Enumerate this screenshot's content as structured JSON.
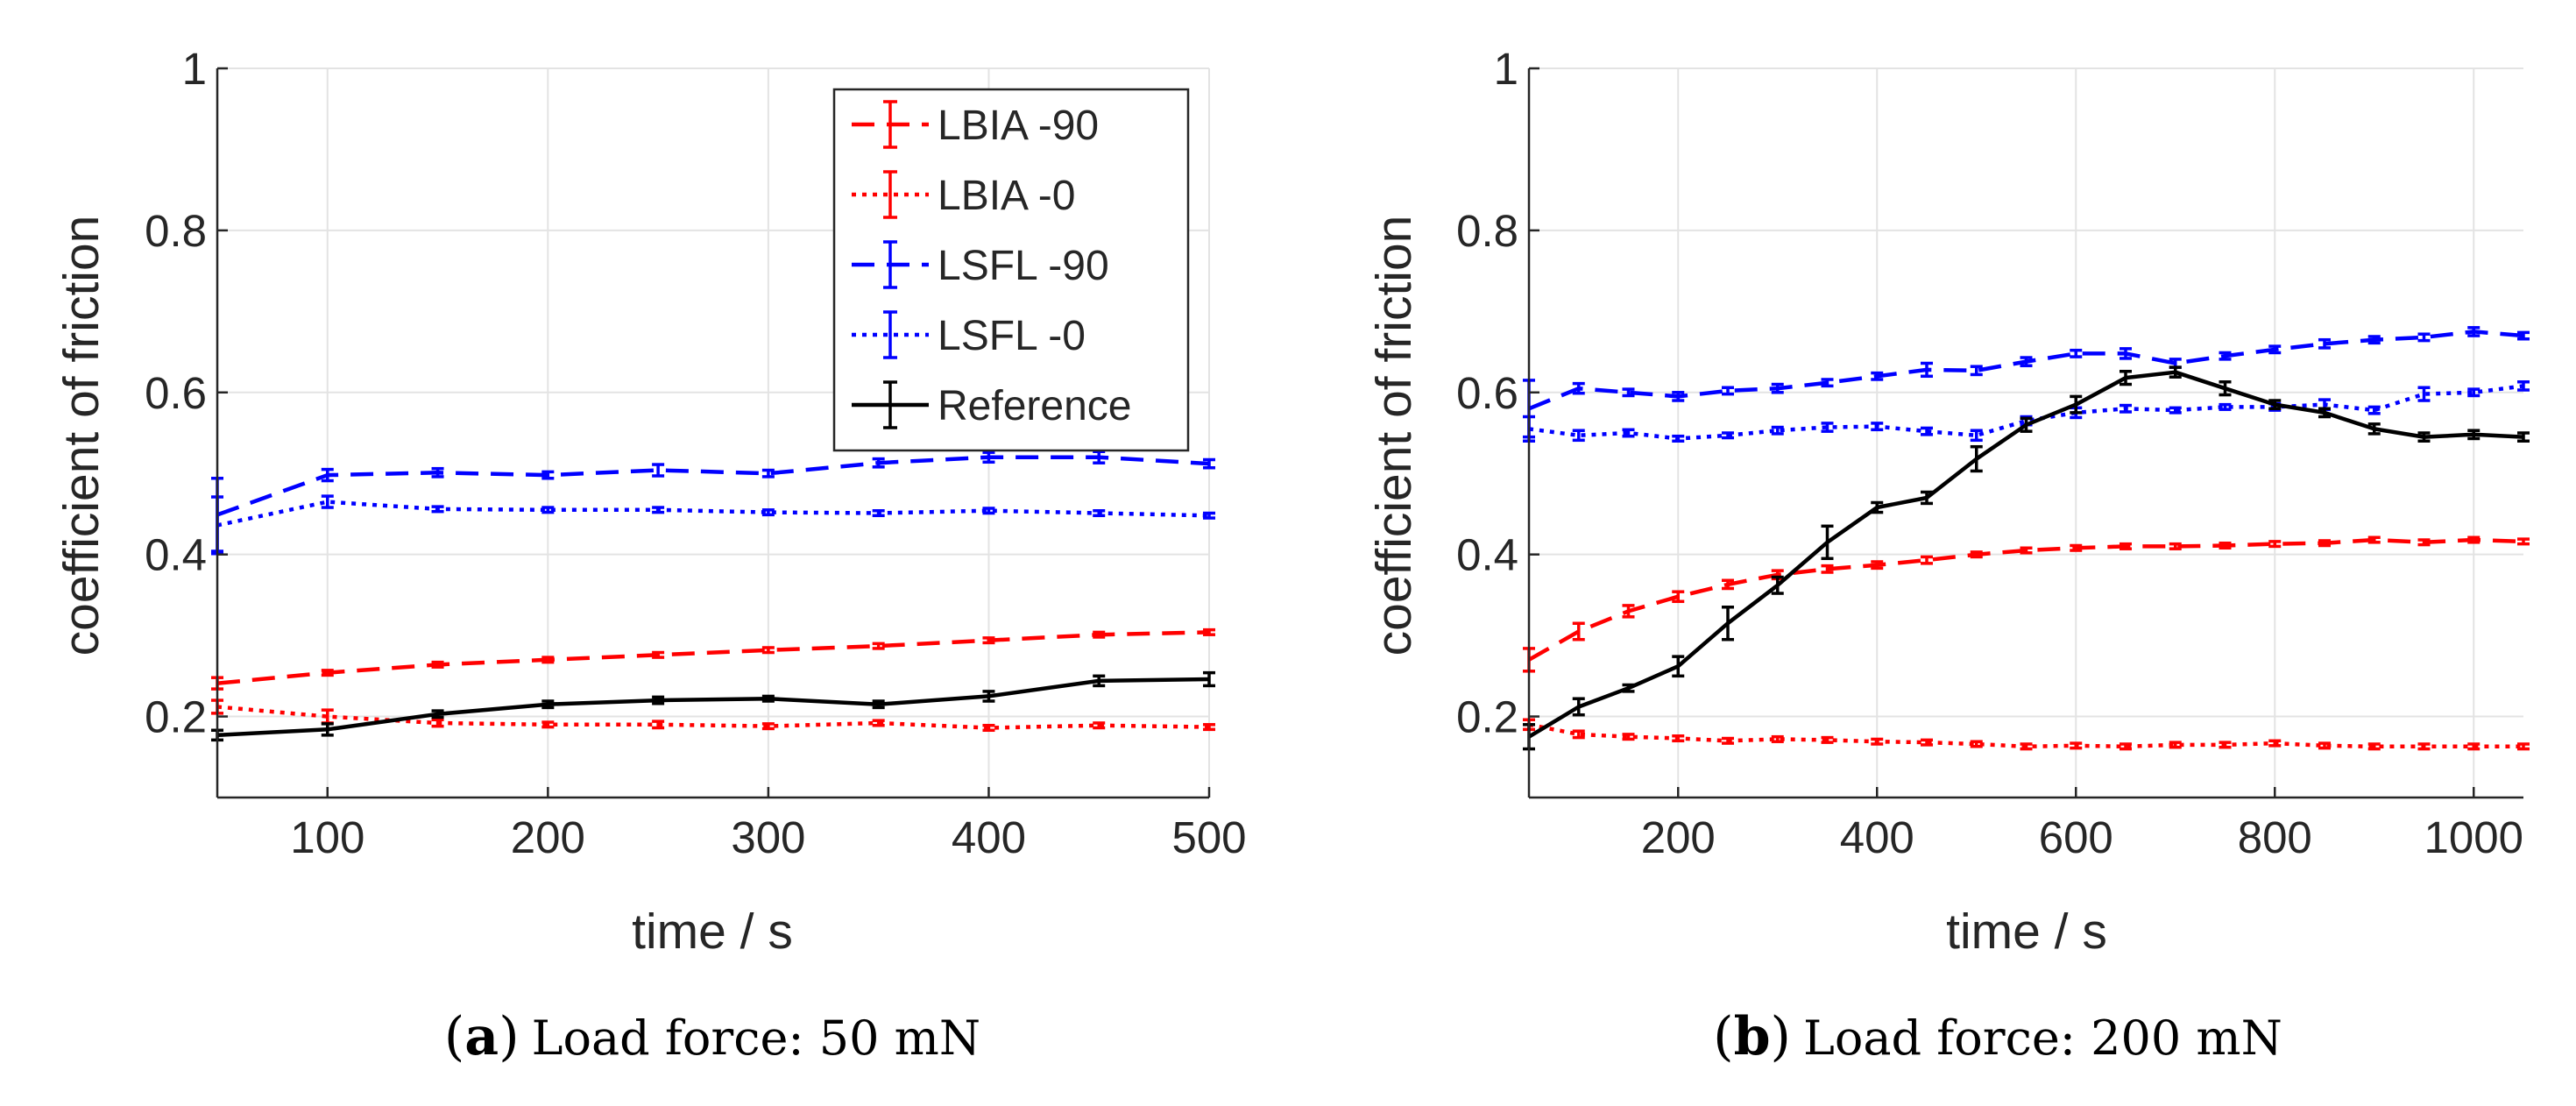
{
  "chart_data": [
    {
      "type": "line",
      "panel_label": "(a)",
      "caption_label": "a",
      "caption_text": "Load force: 50 mN",
      "xlabel": "time / s",
      "ylabel": "coefficient of friction",
      "xlim": [
        50,
        500
      ],
      "ylim": [
        0.1,
        1.0
      ],
      "xticks": [
        100,
        200,
        300,
        400,
        500
      ],
      "yticks": [
        0.2,
        0.4,
        0.6,
        0.8,
        1.0
      ],
      "ytick_labels": [
        "0.2",
        "0.4",
        "0.6",
        "0.8",
        "1"
      ],
      "grid": true,
      "legend_position": "top-right",
      "x": [
        50,
        100,
        150,
        200,
        250,
        300,
        350,
        400,
        450,
        500
      ],
      "series": [
        {
          "name": "LBIA -90",
          "color": "#ff0000",
          "style": "dashed",
          "values": [
            0.241,
            0.254,
            0.264,
            0.27,
            0.276,
            0.282,
            0.287,
            0.294,
            0.301,
            0.304
          ],
          "errors": [
            0.007,
            0.003,
            0.003,
            0.003,
            0.003,
            0.003,
            0.003,
            0.003,
            0.003,
            0.003
          ]
        },
        {
          "name": "LBIA -0",
          "color": "#ff0000",
          "style": "dotted",
          "values": [
            0.212,
            0.2,
            0.192,
            0.19,
            0.19,
            0.188,
            0.192,
            0.186,
            0.189,
            0.187
          ],
          "errors": [
            0.008,
            0.008,
            0.004,
            0.003,
            0.004,
            0.003,
            0.003,
            0.003,
            0.003,
            0.003
          ]
        },
        {
          "name": "LSFL -90",
          "color": "#0000ff",
          "style": "dashed",
          "values": [
            0.449,
            0.498,
            0.501,
            0.498,
            0.504,
            0.5,
            0.513,
            0.52,
            0.52,
            0.512
          ],
          "errors": [
            0.045,
            0.007,
            0.005,
            0.004,
            0.007,
            0.004,
            0.005,
            0.006,
            0.007,
            0.005
          ]
        },
        {
          "name": "LSFL -0",
          "color": "#0000ff",
          "style": "dotted",
          "values": [
            0.436,
            0.465,
            0.456,
            0.455,
            0.455,
            0.452,
            0.451,
            0.454,
            0.451,
            0.448
          ],
          "errors": [
            0.035,
            0.007,
            0.003,
            0.003,
            0.003,
            0.003,
            0.003,
            0.003,
            0.003,
            0.003
          ]
        },
        {
          "name": "Reference",
          "color": "#000000",
          "style": "solid",
          "values": [
            0.177,
            0.184,
            0.203,
            0.215,
            0.22,
            0.222,
            0.215,
            0.225,
            0.244,
            0.246
          ],
          "errors": [
            0.006,
            0.007,
            0.004,
            0.004,
            0.004,
            0.003,
            0.004,
            0.006,
            0.006,
            0.008
          ]
        }
      ]
    },
    {
      "type": "line",
      "panel_label": "(b)",
      "caption_label": "b",
      "caption_text": "Load force: 200 mN",
      "xlabel": "time / s",
      "ylabel": "coefficient of friction",
      "xlim": [
        50,
        1050
      ],
      "ylim": [
        0.1,
        1.0
      ],
      "xticks": [
        200,
        400,
        600,
        800,
        1000
      ],
      "yticks": [
        0.2,
        0.4,
        0.6,
        0.8,
        1.0
      ],
      "ytick_labels": [
        "0.2",
        "0.4",
        "0.6",
        "0.8",
        "1"
      ],
      "grid": true,
      "legend_position": "none",
      "x": [
        50,
        100,
        150,
        200,
        250,
        300,
        350,
        400,
        450,
        500,
        550,
        600,
        650,
        700,
        750,
        800,
        850,
        900,
        950,
        1000,
        1050
      ],
      "series": [
        {
          "name": "LBIA -90",
          "color": "#ff0000",
          "style": "dashed",
          "values": [
            0.27,
            0.305,
            0.33,
            0.348,
            0.363,
            0.375,
            0.382,
            0.387,
            0.393,
            0.4,
            0.405,
            0.408,
            0.41,
            0.41,
            0.411,
            0.413,
            0.414,
            0.418,
            0.415,
            0.418,
            0.416
          ],
          "errors": [
            0.014,
            0.01,
            0.007,
            0.006,
            0.005,
            0.005,
            0.004,
            0.004,
            0.004,
            0.003,
            0.003,
            0.003,
            0.003,
            0.003,
            0.003,
            0.003,
            0.003,
            0.003,
            0.003,
            0.003,
            0.003
          ]
        },
        {
          "name": "LBIA -0",
          "color": "#ff0000",
          "style": "dotted",
          "values": [
            0.19,
            0.178,
            0.175,
            0.173,
            0.17,
            0.172,
            0.171,
            0.169,
            0.168,
            0.166,
            0.163,
            0.164,
            0.163,
            0.165,
            0.165,
            0.167,
            0.164,
            0.163,
            0.163,
            0.163,
            0.163
          ],
          "errors": [
            0.006,
            0.004,
            0.003,
            0.003,
            0.003,
            0.003,
            0.003,
            0.003,
            0.003,
            0.003,
            0.003,
            0.003,
            0.003,
            0.003,
            0.003,
            0.003,
            0.003,
            0.003,
            0.003,
            0.003,
            0.003
          ]
        },
        {
          "name": "LSFL -90",
          "color": "#0000ff",
          "style": "dashed",
          "values": [
            0.58,
            0.605,
            0.6,
            0.595,
            0.602,
            0.605,
            0.612,
            0.62,
            0.628,
            0.627,
            0.638,
            0.648,
            0.648,
            0.636,
            0.645,
            0.653,
            0.66,
            0.665,
            0.668,
            0.675,
            0.67
          ],
          "errors": [
            0.035,
            0.006,
            0.004,
            0.005,
            0.004,
            0.005,
            0.004,
            0.004,
            0.008,
            0.005,
            0.005,
            0.004,
            0.006,
            0.005,
            0.004,
            0.004,
            0.005,
            0.004,
            0.004,
            0.005,
            0.004
          ]
        },
        {
          "name": "LSFL -0",
          "color": "#0000ff",
          "style": "dotted",
          "values": [
            0.555,
            0.547,
            0.55,
            0.543,
            0.547,
            0.553,
            0.557,
            0.558,
            0.552,
            0.547,
            0.565,
            0.575,
            0.58,
            0.578,
            0.582,
            0.582,
            0.585,
            0.578,
            0.598,
            0.6,
            0.608
          ],
          "errors": [
            0.015,
            0.006,
            0.004,
            0.003,
            0.003,
            0.004,
            0.005,
            0.004,
            0.004,
            0.006,
            0.005,
            0.006,
            0.004,
            0.003,
            0.003,
            0.004,
            0.006,
            0.004,
            0.008,
            0.004,
            0.005
          ]
        },
        {
          "name": "Reference",
          "color": "#000000",
          "style": "solid",
          "values": [
            0.175,
            0.212,
            0.235,
            0.262,
            0.315,
            0.362,
            0.415,
            0.458,
            0.47,
            0.518,
            0.56,
            0.585,
            0.618,
            0.625,
            0.605,
            0.585,
            0.575,
            0.555,
            0.545,
            0.548,
            0.545
          ],
          "errors": [
            0.015,
            0.01,
            0.004,
            0.012,
            0.02,
            0.01,
            0.02,
            0.006,
            0.007,
            0.015,
            0.008,
            0.01,
            0.008,
            0.006,
            0.008,
            0.005,
            0.005,
            0.006,
            0.005,
            0.005,
            0.005
          ]
        }
      ]
    }
  ]
}
